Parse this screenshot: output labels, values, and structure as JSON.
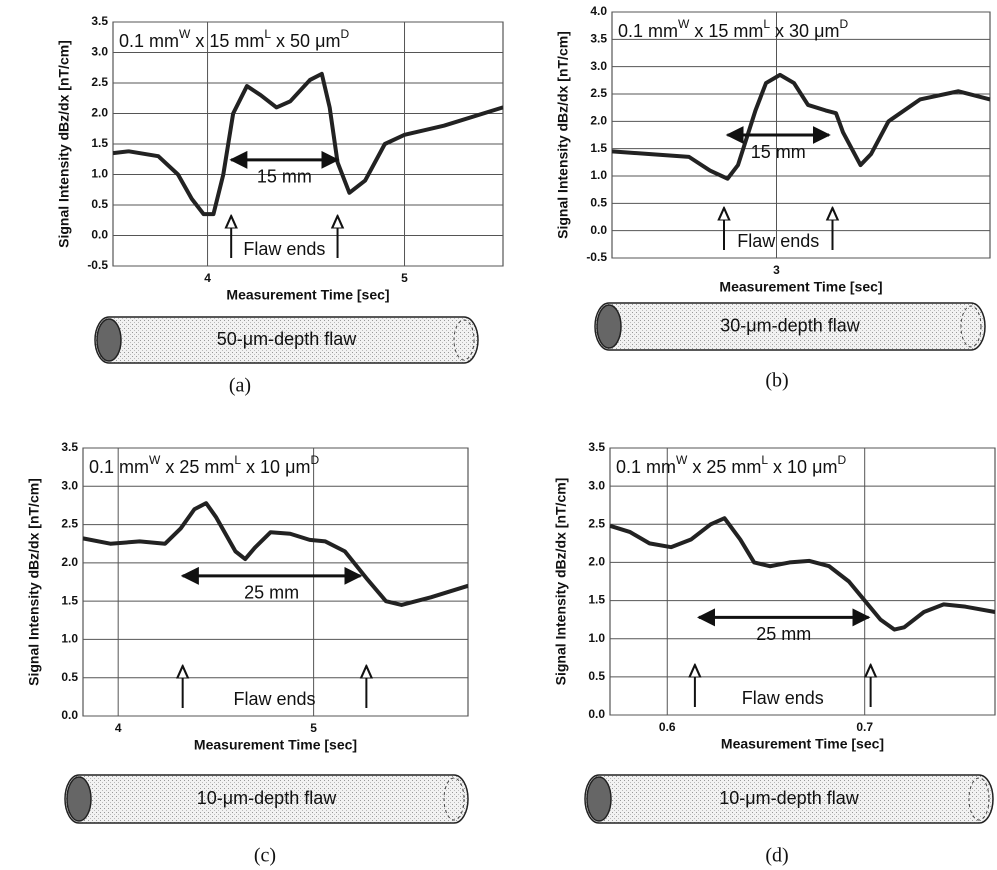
{
  "chart_data": [
    {
      "type": "line",
      "title": [
        [
          "0.1 mm",
          "W"
        ],
        [
          " x 15 mm",
          "L"
        ],
        [
          " x 50 μm",
          "D"
        ]
      ],
      "xlabel": "Measurement Time [sec]",
      "ylabel": "Signal Intensity dBz/dx [nT/cm]",
      "xlim": [
        3.52,
        5.5
      ],
      "ylim": [
        -0.5,
        3.5
      ],
      "xticks": [
        4,
        5
      ],
      "yticks": [
        -0.5,
        {
          "value": 0,
          "label": "0.0"
        },
        0.5,
        {
          "value": 1,
          "label": "1.0"
        },
        1.5,
        {
          "value": 2,
          "label": "2.0"
        },
        2.5,
        {
          "value": 3,
          "label": "3.0"
        },
        3.5
      ],
      "grid": true,
      "color": "#222222",
      "x": [
        3.52,
        3.6,
        3.75,
        3.85,
        3.92,
        3.98,
        4.03,
        4.08,
        4.13,
        4.2,
        4.27,
        4.35,
        4.42,
        4.52,
        4.58,
        4.62,
        4.66,
        4.72,
        4.8,
        4.9,
        5.0,
        5.2,
        5.5
      ],
      "values": [
        1.35,
        1.38,
        1.3,
        1.0,
        0.6,
        0.35,
        0.35,
        1.0,
        2.0,
        2.45,
        2.3,
        2.1,
        2.2,
        2.55,
        2.65,
        2.1,
        1.2,
        0.7,
        0.9,
        1.5,
        1.65,
        1.8,
        2.1
      ],
      "span_label": "15 mm",
      "span": [
        4.12,
        4.66
      ],
      "span_y": 1.24,
      "arrow_label": "Flaw ends",
      "arrows": [
        4.12,
        4.66
      ],
      "tube_label": "50-μm-depth flaw",
      "caption": "(a)"
    },
    {
      "type": "line",
      "title": [
        [
          "0.1 mm",
          "W"
        ],
        [
          " x 15 mm",
          "L"
        ],
        [
          " x 30 μm",
          "D"
        ]
      ],
      "xlabel": "Measurement Time [sec]",
      "ylabel": "Signal Intensity dBz/dx [nT/cm]",
      "xlim": [
        2.53,
        3.61
      ],
      "ylim": [
        -0.5,
        4.0
      ],
      "xticks": [
        3
      ],
      "yticks": [
        -0.5,
        {
          "value": 0,
          "label": "0.0"
        },
        0.5,
        {
          "value": 1,
          "label": "1.0"
        },
        1.5,
        {
          "value": 2,
          "label": "2.0"
        },
        2.5,
        {
          "value": 3,
          "label": "3.0"
        },
        3.5,
        {
          "value": 4,
          "label": "4.0"
        }
      ],
      "grid": true,
      "color": "#222222",
      "x": [
        2.53,
        2.64,
        2.75,
        2.81,
        2.86,
        2.89,
        2.94,
        2.97,
        3.01,
        3.05,
        3.09,
        3.14,
        3.17,
        3.19,
        3.24,
        3.27,
        3.32,
        3.41,
        3.52,
        3.61
      ],
      "values": [
        1.45,
        1.4,
        1.35,
        1.1,
        0.95,
        1.2,
        2.2,
        2.7,
        2.85,
        2.7,
        2.3,
        2.2,
        2.15,
        1.8,
        1.2,
        1.4,
        2.0,
        2.4,
        2.55,
        2.4
      ],
      "span_label": "15 mm",
      "span": [
        2.86,
        3.15
      ],
      "span_y": 1.75,
      "arrow_label": "Flaw ends",
      "arrows": [
        2.85,
        3.16
      ],
      "tube_label": "30-μm-depth flaw",
      "caption": "(b)"
    },
    {
      "type": "line",
      "title": [
        [
          "0.1 mm",
          "W"
        ],
        [
          " x 25 mm",
          "L"
        ],
        [
          " x 10 μm",
          "D"
        ]
      ],
      "xlabel": "Measurement Time [sec]",
      "ylabel": "Signal Intensity dBz/dx [nT/cm]",
      "xlim": [
        3.82,
        5.79
      ],
      "ylim": [
        0,
        3.5
      ],
      "xticks": [
        4,
        5
      ],
      "yticks": [
        {
          "value": 0,
          "label": "0.0"
        },
        0.5,
        {
          "value": 1,
          "label": "1.0"
        },
        1.5,
        {
          "value": 2,
          "label": "2.0"
        },
        2.5,
        {
          "value": 3,
          "label": "3.0"
        },
        3.5
      ],
      "grid": true,
      "color": "#222222",
      "x": [
        3.82,
        3.96,
        4.11,
        4.24,
        4.32,
        4.39,
        4.45,
        4.5,
        4.6,
        4.65,
        4.7,
        4.78,
        4.88,
        4.98,
        5.06,
        5.16,
        5.27,
        5.37,
        5.45,
        5.6,
        5.79
      ],
      "values": [
        2.32,
        2.25,
        2.28,
        2.25,
        2.45,
        2.7,
        2.78,
        2.6,
        2.15,
        2.05,
        2.2,
        2.4,
        2.38,
        2.3,
        2.28,
        2.15,
        1.8,
        1.5,
        1.45,
        1.55,
        1.7
      ],
      "span_label": "25 mm",
      "span": [
        4.33,
        5.24
      ],
      "span_y": 1.83,
      "arrow_label": "Flaw ends",
      "arrows": [
        4.33,
        5.27
      ],
      "tube_label": "10-μm-depth flaw",
      "caption": "(c)"
    },
    {
      "type": "line",
      "title": [
        [
          "0.1 mm",
          "W"
        ],
        [
          " x 25 mm",
          "L"
        ],
        [
          " x 10 μm",
          "D"
        ]
      ],
      "xlabel": "Measurement Time [sec]",
      "ylabel": "Signal Intensity dBz/dx [nT/cm]",
      "xlim": [
        0.571,
        0.766
      ],
      "ylim": [
        0,
        3.5
      ],
      "xticks": [
        0.6,
        0.7
      ],
      "yticks": [
        {
          "value": 0,
          "label": "0.0"
        },
        0.5,
        {
          "value": 1,
          "label": "1.0"
        },
        1.5,
        {
          "value": 2,
          "label": "2.0"
        },
        2.5,
        {
          "value": 3,
          "label": "3.0"
        },
        3.5
      ],
      "grid": true,
      "color": "#222222",
      "x": [
        0.571,
        0.581,
        0.591,
        0.602,
        0.612,
        0.622,
        0.629,
        0.637,
        0.644,
        0.652,
        0.662,
        0.672,
        0.682,
        0.692,
        0.7,
        0.708,
        0.715,
        0.72,
        0.73,
        0.74,
        0.751,
        0.766
      ],
      "values": [
        2.48,
        2.4,
        2.25,
        2.2,
        2.3,
        2.5,
        2.58,
        2.3,
        2.0,
        1.95,
        2.0,
        2.02,
        1.95,
        1.75,
        1.5,
        1.25,
        1.12,
        1.15,
        1.35,
        1.45,
        1.42,
        1.35
      ],
      "span_label": "25 mm",
      "span": [
        0.616,
        0.702
      ],
      "span_y": 1.28,
      "arrow_label": "Flaw ends",
      "arrows": [
        0.614,
        0.703
      ],
      "tube_label": "10-μm-depth flaw",
      "caption": "(d)"
    }
  ]
}
